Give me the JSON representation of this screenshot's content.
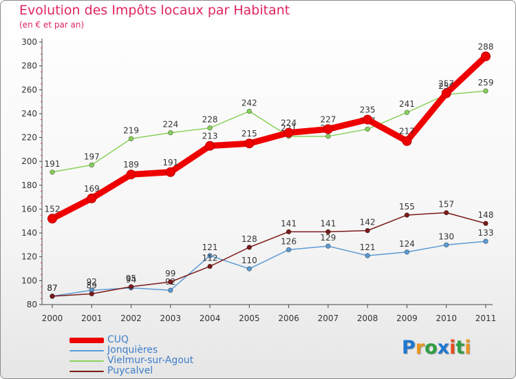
{
  "chart_data": {
    "type": "line",
    "title": "Evolution des Impôts locaux par Habitant",
    "subtitle": "(en € et par an)",
    "xlabel": "",
    "ylabel": "",
    "ylim": [
      80,
      300
    ],
    "yticks": [
      "80",
      "100",
      "120",
      "140",
      "160",
      "180",
      "200",
      "220",
      "240",
      "260",
      "280",
      "300"
    ],
    "categories": [
      "2000",
      "2001",
      "2002",
      "2003",
      "2004",
      "2005",
      "2006",
      "2007",
      "2008",
      "2009",
      "2010",
      "2011"
    ],
    "series": [
      {
        "name": "Vielmur-sur-Agout",
        "color": "#88d15a",
        "values": [
          191,
          197,
          219,
          224,
          228,
          242,
          221,
          221,
          227,
          241,
          256,
          259
        ],
        "labels": [
          "191",
          "197",
          "219",
          "224",
          "228",
          "242",
          "221",
          "221",
          "227",
          "241",
          "256",
          "259"
        ]
      },
      {
        "name": "Jonquières",
        "color": "#5b9bd5",
        "values": [
          87,
          92,
          94,
          92,
          121,
          110,
          126,
          129,
          121,
          124,
          130,
          133
        ],
        "labels": [
          "87",
          "92",
          "94",
          "92",
          "121",
          "110",
          "126",
          "129",
          "121",
          "124",
          "130",
          "133"
        ]
      },
      {
        "name": "Puycalvel",
        "color": "#7b1a1a",
        "values": [
          87,
          89,
          95,
          99,
          112,
          128,
          141,
          141,
          142,
          155,
          157,
          148
        ],
        "labels": [
          "87",
          "89",
          "95",
          "99",
          "112",
          "128",
          "141",
          "141",
          "142",
          "155",
          "157",
          "148"
        ]
      },
      {
        "name": "CUQ",
        "color": "#ee0000",
        "values": [
          152,
          169,
          189,
          191,
          213,
          215,
          224,
          227,
          235,
          217,
          257,
          288
        ],
        "labels": [
          "152",
          "169",
          "189",
          "191",
          "213",
          "215",
          "224",
          "227",
          "235",
          "217",
          "257",
          "288"
        ]
      }
    ],
    "legend_order": [
      "CUQ",
      "Jonquières",
      "Vielmur-sur-Agout",
      "Puycalvel"
    ],
    "legend_position": "bottom-left",
    "grid": false
  },
  "brand": {
    "letters": [
      "P",
      "r",
      "o",
      "x",
      "i",
      "t",
      "i"
    ],
    "colors": [
      "#1f77d0",
      "#e8961e",
      "#2f9e44",
      "#1f77d0",
      "#e84a1e",
      "#2f9e44",
      "#e8961e"
    ]
  }
}
